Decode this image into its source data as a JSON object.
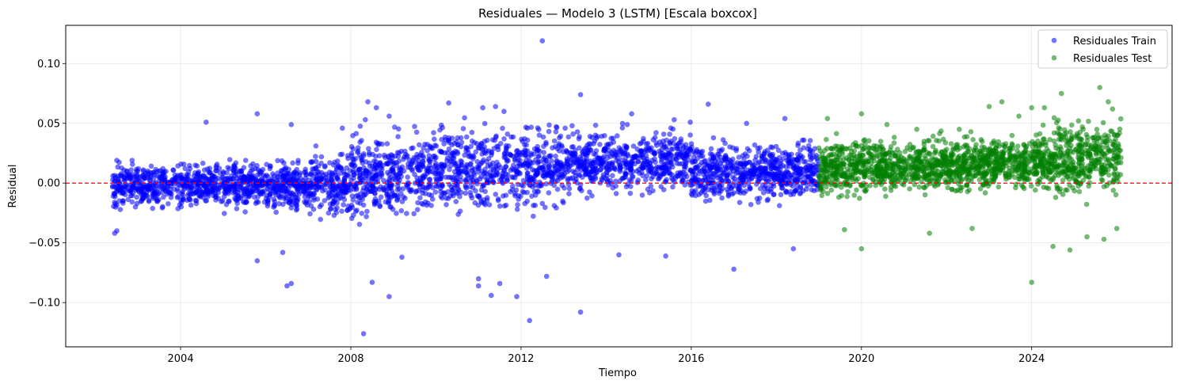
{
  "chart_data": {
    "type": "scatter",
    "title": "Residuales — Modelo 3 (LSTM) [Escala boxcox]",
    "xlabel": "Tiempo",
    "ylabel": "Residual",
    "xlim": [
      2001.3,
      2027.3
    ],
    "ylim": [
      -0.137,
      0.132
    ],
    "x_ticks": [
      2004,
      2008,
      2012,
      2016,
      2020,
      2024
    ],
    "y_ticks": [
      -0.1,
      -0.05,
      0.0,
      0.05,
      0.1
    ],
    "y_tick_labels": [
      "−0.10",
      "−0.05",
      "0.00",
      "0.05",
      "0.10"
    ],
    "grid": true,
    "legend_position": "top-right",
    "reference_line": {
      "y": 0.0,
      "color": "#ff0000",
      "style": "dashed"
    },
    "series": [
      {
        "name": "Residuales Train",
        "color": "#0000ff",
        "x_range": [
          2002.4,
          2019.0
        ],
        "points": [
          [
            2002.45,
            -0.042
          ],
          [
            2002.5,
            -0.04
          ],
          [
            2002.5,
            0.019
          ],
          [
            2004.6,
            0.051
          ],
          [
            2005.8,
            0.058
          ],
          [
            2006.5,
            -0.086
          ],
          [
            2006.6,
            -0.084
          ],
          [
            2006.6,
            0.049
          ],
          [
            2005.8,
            -0.065
          ],
          [
            2006.4,
            -0.058
          ],
          [
            2007.8,
            0.046
          ],
          [
            2008.3,
            -0.126
          ],
          [
            2008.5,
            -0.083
          ],
          [
            2008.4,
            0.068
          ],
          [
            2008.6,
            0.063
          ],
          [
            2008.9,
            -0.095
          ],
          [
            2008.9,
            0.056
          ],
          [
            2009.2,
            -0.062
          ],
          [
            2010.3,
            0.067
          ],
          [
            2011.0,
            -0.086
          ],
          [
            2011.0,
            -0.08
          ],
          [
            2011.1,
            0.063
          ],
          [
            2011.3,
            -0.094
          ],
          [
            2011.4,
            0.064
          ],
          [
            2011.5,
            -0.084
          ],
          [
            2011.6,
            0.06
          ],
          [
            2011.9,
            -0.095
          ],
          [
            2012.2,
            -0.115
          ],
          [
            2012.5,
            0.119
          ],
          [
            2012.6,
            -0.078
          ],
          [
            2013.4,
            0.074
          ],
          [
            2013.4,
            -0.108
          ],
          [
            2013.2,
            0.048
          ],
          [
            2014.3,
            -0.06
          ],
          [
            2014.6,
            0.058
          ],
          [
            2015.4,
            -0.061
          ],
          [
            2015.6,
            0.053
          ],
          [
            2016.4,
            0.066
          ],
          [
            2017.0,
            -0.072
          ],
          [
            2017.3,
            0.05
          ],
          [
            2018.2,
            0.054
          ],
          [
            2018.4,
            -0.055
          ]
        ]
      },
      {
        "name": "Residuales Test",
        "color": "#008000",
        "x_range": [
          2019.0,
          2026.1
        ],
        "points": [
          [
            2019.2,
            0.054
          ],
          [
            2019.6,
            -0.039
          ],
          [
            2020.0,
            0.058
          ],
          [
            2020.0,
            -0.055
          ],
          [
            2020.6,
            0.049
          ],
          [
            2021.3,
            0.045
          ],
          [
            2021.6,
            -0.042
          ],
          [
            2022.3,
            0.045
          ],
          [
            2022.6,
            -0.038
          ],
          [
            2023.0,
            0.064
          ],
          [
            2023.3,
            0.068
          ],
          [
            2023.7,
            0.056
          ],
          [
            2024.0,
            0.063
          ],
          [
            2024.0,
            -0.083
          ],
          [
            2024.3,
            0.063
          ],
          [
            2024.5,
            -0.053
          ],
          [
            2024.7,
            0.075
          ],
          [
            2024.9,
            -0.056
          ],
          [
            2025.1,
            0.052
          ],
          [
            2025.3,
            -0.045
          ],
          [
            2025.6,
            0.08
          ],
          [
            2025.7,
            -0.047
          ],
          [
            2025.8,
            0.068
          ],
          [
            2025.9,
            0.062
          ],
          [
            2026.0,
            -0.038
          ]
        ]
      }
    ]
  }
}
